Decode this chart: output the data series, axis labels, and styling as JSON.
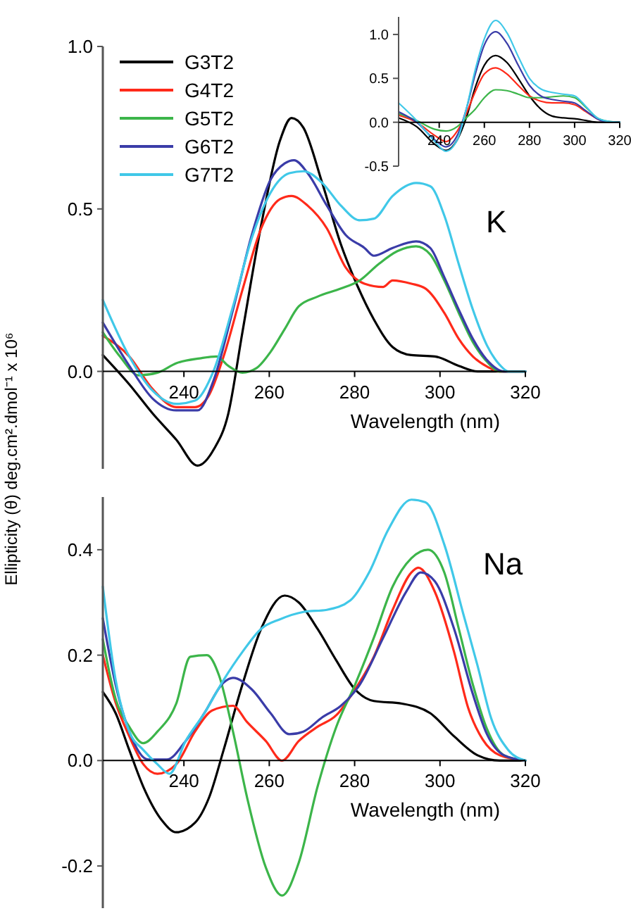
{
  "chart_data": [
    {
      "type": "line",
      "ylabel": "Ellipticity (θ) deg.cm².dmol⁻¹ x 10⁶",
      "xlabel": "Wavelength (nm)",
      "annotations": [
        "K"
      ],
      "xlim": [
        221,
        320
      ],
      "ylim": [
        -0.3,
        1.0
      ],
      "xticks": [
        240,
        260,
        280,
        300,
        320
      ],
      "yticks": [
        {
          "value": 0,
          "label": "0.0"
        },
        {
          "value": 0.5,
          "label": "0.5"
        },
        {
          "value": 1,
          "label": "1.0"
        }
      ],
      "legend": "top left",
      "grid": false,
      "series": [
        {
          "name": "G3T2",
          "color": "#000000",
          "x": [
            221,
            227.2,
            232.7,
            238.2,
            243.2,
            247,
            250.4,
            253.7,
            258.1,
            262.5,
            265.2,
            268,
            272.4,
            276.8,
            280.1,
            284.5,
            288.9,
            293.3,
            298.8,
            304.4,
            308.8,
            315,
            320
          ],
          "values": [
            0.05,
            -0.04,
            -0.13,
            -0.21,
            -0.29,
            -0.24,
            -0.13,
            0.12,
            0.45,
            0.71,
            0.78,
            0.75,
            0.58,
            0.39,
            0.28,
            0.16,
            0.075,
            0.05,
            0.046,
            0.017,
            0,
            0,
            0
          ]
        },
        {
          "name": "G4T2",
          "color": "#ff2a1a",
          "x": [
            221,
            227.2,
            232.7,
            238.2,
            242.6,
            246,
            249.3,
            253.7,
            258.1,
            262.5,
            265.2,
            269,
            273.5,
            277.9,
            282.3,
            286.7,
            288.9,
            293.3,
            296.6,
            301,
            304.4,
            307.7,
            311,
            314,
            320
          ],
          "values": [
            0.11,
            0.046,
            -0.055,
            -0.11,
            -0.11,
            -0.07,
            0.046,
            0.25,
            0.44,
            0.53,
            0.54,
            0.51,
            0.44,
            0.32,
            0.27,
            0.26,
            0.28,
            0.27,
            0.255,
            0.18,
            0.1,
            0.046,
            0.015,
            0,
            0
          ]
        },
        {
          "name": "G5T2",
          "color": "#3cb54a",
          "x": [
            221,
            225,
            229.4,
            233.8,
            238.2,
            243.7,
            247.6,
            250.4,
            253.7,
            257,
            260.3,
            263.6,
            266.9,
            271.3,
            276.8,
            281.2,
            285.6,
            290,
            294.4,
            297.7,
            301,
            304.4,
            307.7,
            311,
            314,
            320
          ],
          "values": [
            0.12,
            0.046,
            -0.012,
            -0.004,
            0.025,
            0.04,
            0.046,
            0.017,
            -0.004,
            0.01,
            0.06,
            0.13,
            0.2,
            0.23,
            0.255,
            0.28,
            0.33,
            0.37,
            0.385,
            0.36,
            0.28,
            0.18,
            0.09,
            0.03,
            0,
            0
          ]
        },
        {
          "name": "G6T2",
          "color": "#3a3ca8",
          "x": [
            221,
            227.2,
            232.7,
            238.2,
            243.2,
            247,
            251.5,
            255.9,
            260.3,
            263.6,
            265.8,
            269,
            273.5,
            277.9,
            282.3,
            284.5,
            288.9,
            294.4,
            297.7,
            301,
            304.4,
            307.7,
            311,
            315,
            320
          ],
          "values": [
            0.15,
            0.017,
            -0.084,
            -0.12,
            -0.12,
            -0.026,
            0.19,
            0.42,
            0.59,
            0.64,
            0.65,
            0.61,
            0.51,
            0.42,
            0.38,
            0.356,
            0.38,
            0.4,
            0.38,
            0.29,
            0.19,
            0.1,
            0.035,
            0,
            0
          ]
        },
        {
          "name": "G7T2",
          "color": "#40c8e8",
          "x": [
            221,
            227.2,
            232.7,
            238.2,
            242.6,
            247,
            251.5,
            255.9,
            260.3,
            264.7,
            268,
            272.4,
            276.8,
            281.2,
            284.5,
            288.9,
            294.4,
            297.7,
            301,
            304.4,
            307.7,
            311,
            314,
            316,
            320
          ],
          "values": [
            0.22,
            0.046,
            -0.06,
            -0.1,
            -0.09,
            0.003,
            0.2,
            0.41,
            0.55,
            0.61,
            0.616,
            0.58,
            0.51,
            0.465,
            0.47,
            0.54,
            0.58,
            0.57,
            0.48,
            0.33,
            0.19,
            0.08,
            0.02,
            0,
            0
          ]
        }
      ]
    },
    {
      "type": "line",
      "xlim": [
        222,
        320
      ],
      "ylim": [
        -0.5,
        1.2
      ],
      "xticks": [
        240,
        260,
        280,
        300,
        320
      ],
      "yticks": [
        {
          "value": -0.5,
          "label": "-0.5"
        },
        {
          "value": 0,
          "label": "0.0"
        },
        {
          "value": 0.5,
          "label": "0.5"
        },
        {
          "value": 1,
          "label": "1.0"
        }
      ],
      "legend": false,
      "grid": false,
      "series": [
        {
          "color": "#000000",
          "x": [
            222,
            230,
            238,
            243,
            248,
            252,
            256,
            260,
            265,
            270,
            275,
            280,
            285,
            290,
            295,
            300,
            305,
            310,
            315,
            320
          ],
          "values": [
            0.05,
            -0.05,
            -0.25,
            -0.32,
            -0.2,
            0.05,
            0.4,
            0.65,
            0.76,
            0.68,
            0.5,
            0.3,
            0.15,
            0.07,
            0.05,
            0.04,
            0.02,
            0,
            0,
            0
          ]
        },
        {
          "color": "#ff2a1a",
          "x": [
            222,
            230,
            238,
            243,
            248,
            252,
            256,
            260,
            265,
            270,
            275,
            280,
            285,
            290,
            295,
            300,
            305,
            310,
            315,
            320
          ],
          "values": [
            0.08,
            0,
            -0.15,
            -0.22,
            -0.1,
            0.1,
            0.35,
            0.55,
            0.62,
            0.55,
            0.42,
            0.3,
            0.24,
            0.22,
            0.22,
            0.2,
            0.12,
            0.04,
            0,
            0
          ]
        },
        {
          "color": "#3cb54a",
          "x": [
            222,
            230,
            238,
            243,
            248,
            252,
            256,
            260,
            265,
            270,
            275,
            280,
            285,
            290,
            295,
            300,
            305,
            310,
            315,
            320
          ],
          "values": [
            0.1,
            0.02,
            -0.08,
            -0.1,
            -0.05,
            0.05,
            0.15,
            0.28,
            0.37,
            0.36,
            0.32,
            0.28,
            0.28,
            0.29,
            0.3,
            0.28,
            0.17,
            0.05,
            0.01,
            0
          ]
        },
        {
          "color": "#3a3ca8",
          "x": [
            222,
            230,
            238,
            243,
            248,
            252,
            256,
            260,
            265,
            270,
            275,
            280,
            285,
            290,
            295,
            300,
            305,
            310,
            315,
            320
          ],
          "values": [
            0.12,
            0,
            -0.2,
            -0.28,
            -0.15,
            0.15,
            0.55,
            0.88,
            1.03,
            0.9,
            0.65,
            0.42,
            0.3,
            0.26,
            0.24,
            0.22,
            0.13,
            0.04,
            0,
            0
          ]
        },
        {
          "color": "#40c8e8",
          "x": [
            222,
            230,
            238,
            243,
            248,
            252,
            256,
            260,
            265,
            270,
            275,
            280,
            285,
            290,
            295,
            300,
            305,
            310,
            315,
            320
          ],
          "values": [
            0.22,
            0.02,
            -0.22,
            -0.33,
            -0.2,
            0.15,
            0.6,
            0.95,
            1.16,
            1.02,
            0.75,
            0.5,
            0.38,
            0.34,
            0.32,
            0.3,
            0.18,
            0.05,
            0.01,
            0
          ]
        }
      ]
    },
    {
      "type": "line",
      "xlabel": "Wavelength (nm)",
      "annotations": [
        "Na"
      ],
      "xlim": [
        221,
        320
      ],
      "ylim": [
        -0.28,
        0.5
      ],
      "xticks": [
        240,
        260,
        280,
        300,
        320
      ],
      "yticks": [
        {
          "value": -0.2,
          "label": "-0.2"
        },
        {
          "value": 0,
          "label": "0.0"
        },
        {
          "value": 0.2,
          "label": "0.2"
        },
        {
          "value": 0.4,
          "label": "0.4"
        }
      ],
      "legend": false,
      "grid": false,
      "series": [
        {
          "color": "#000000",
          "x": [
            221,
            224,
            227.2,
            230.5,
            234.9,
            238.2,
            242.6,
            245.9,
            249.3,
            253.7,
            258.1,
            263.6,
            266.9,
            271.3,
            275.7,
            280.1,
            284.5,
            291.1,
            297.7,
            303.3,
            308.8,
            314,
            320
          ],
          "values": [
            0.13,
            0.09,
            0.02,
            -0.05,
            -0.114,
            -0.136,
            -0.118,
            -0.07,
            0.02,
            0.144,
            0.25,
            0.313,
            0.3,
            0.25,
            0.19,
            0.135,
            0.113,
            0.108,
            0.09,
            0.046,
            0.01,
            0,
            0
          ]
        },
        {
          "color": "#ff2a1a",
          "x": [
            221,
            224,
            227.2,
            230.5,
            233.8,
            238.2,
            242.6,
            246.6,
            251.5,
            254.8,
            259.2,
            263,
            266.9,
            271.3,
            275.7,
            280.1,
            284.5,
            288.9,
            293.3,
            294.9,
            298.8,
            303.3,
            306.6,
            310,
            314,
            320
          ],
          "values": [
            0.2,
            0.11,
            0.046,
            -0.007,
            -0.025,
            -0.007,
            0.055,
            0.095,
            0.104,
            0.073,
            0.037,
            0,
            0.037,
            0.064,
            0.086,
            0.135,
            0.197,
            0.286,
            0.357,
            0.366,
            0.32,
            0.206,
            0.1,
            0.04,
            0.01,
            0
          ]
        },
        {
          "color": "#3cb54a",
          "x": [
            221,
            224,
            227.2,
            230.5,
            233.8,
            238.2,
            241.5,
            245.4,
            248.2,
            251.5,
            254.8,
            259.2,
            263,
            266.9,
            271.3,
            275.7,
            280.1,
            284.5,
            288.9,
            293.3,
            297.2,
            301,
            304.4,
            307.7,
            311,
            315,
            320
          ],
          "values": [
            0.23,
            0.117,
            0.064,
            0.033,
            0.055,
            0.108,
            0.197,
            0.2,
            0.162,
            0.055,
            -0.07,
            -0.203,
            -0.256,
            -0.194,
            -0.05,
            0.064,
            0.144,
            0.233,
            0.33,
            0.384,
            0.4,
            0.357,
            0.25,
            0.144,
            0.06,
            0.01,
            0
          ]
        },
        {
          "color": "#3a3ca8",
          "x": [
            221,
            224,
            227.2,
            231.6,
            236,
            240.4,
            244.8,
            249.3,
            251.5,
            255.9,
            260.3,
            264.7,
            268,
            272.4,
            276.8,
            281.2,
            286.7,
            292.2,
            295.5,
            298.8,
            303.3,
            307.7,
            311,
            315,
            320
          ],
          "values": [
            0.27,
            0.144,
            0.055,
            0.002,
            0.002,
            0.037,
            0.09,
            0.148,
            0.157,
            0.135,
            0.09,
            0.05,
            0.055,
            0.082,
            0.104,
            0.144,
            0.233,
            0.322,
            0.357,
            0.34,
            0.25,
            0.126,
            0.05,
            0.01,
            0
          ]
        },
        {
          "color": "#40c8e8",
          "x": [
            221,
            224,
            227.2,
            230.5,
            233.8,
            236.6,
            240.4,
            244.8,
            249.3,
            253.7,
            258.1,
            262.5,
            268,
            273.5,
            279,
            283.4,
            287.8,
            293.3,
            296.6,
            301,
            305.5,
            308.8,
            312,
            316,
            320
          ],
          "values": [
            0.33,
            0.153,
            0.055,
            0.02,
            -0.007,
            -0.025,
            0.037,
            0.09,
            0.153,
            0.206,
            0.25,
            0.268,
            0.282,
            0.286,
            0.304,
            0.357,
            0.437,
            0.495,
            0.49,
            0.41,
            0.277,
            0.18,
            0.08,
            0.02,
            0
          ]
        }
      ]
    }
  ]
}
